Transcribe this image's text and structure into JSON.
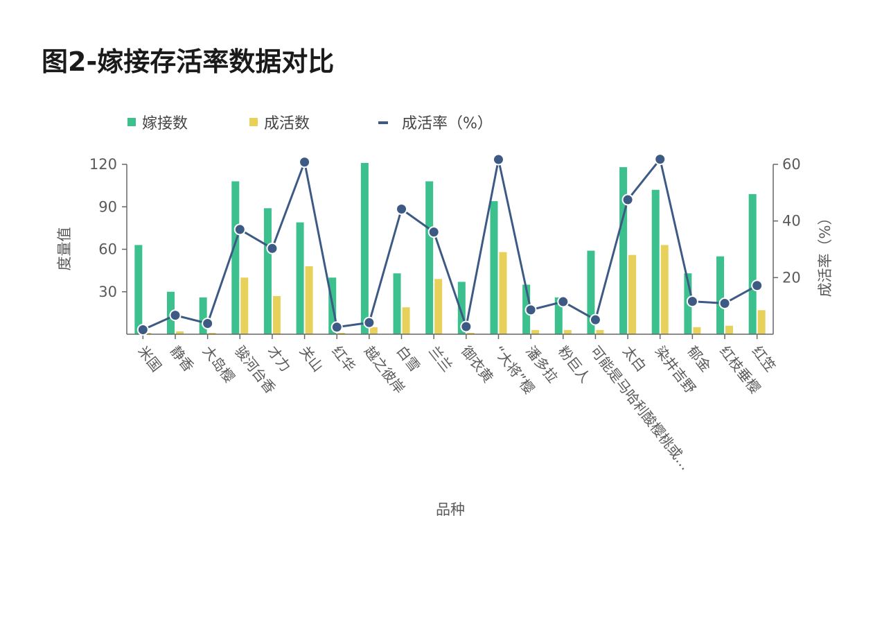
{
  "title": "图2-嫁接存活率数据对比",
  "colors": {
    "bar1": "#3cc08e",
    "bar2": "#e8d15a",
    "line": "#3d5a85",
    "axis": "#666666"
  },
  "chart_data": {
    "type": "bar",
    "categories": [
      "米国",
      "静香",
      "大岛樱",
      "骏河台香",
      "才力",
      "关山",
      "红华",
      "越之彼岸",
      "白雪",
      "兰兰",
      "御衣黄",
      "“大将”樱",
      "潘多拉",
      "粉巨人",
      "可能是马哈利酸樱桃或…",
      "太白",
      "染井吉野",
      "郁金",
      "红枝垂樱",
      "红笠"
    ],
    "series": [
      {
        "name": "嫁接数",
        "type": "bar",
        "axis": "left",
        "color": "#3cc08e",
        "values": [
          63,
          30,
          26,
          108,
          89,
          79,
          40,
          121,
          43,
          108,
          37,
          94,
          35,
          26,
          59,
          118,
          102,
          43,
          55,
          99
        ]
      },
      {
        "name": "成活数",
        "type": "bar",
        "axis": "left",
        "color": "#e8d15a",
        "values": [
          1,
          2,
          1,
          40,
          27,
          48,
          1,
          5,
          19,
          39,
          1,
          58,
          3,
          3,
          3,
          56,
          63,
          5,
          6,
          17
        ]
      },
      {
        "name": "成活率（%）",
        "type": "line",
        "axis": "right",
        "color": "#3d5a85",
        "values": [
          1.6,
          6.7,
          3.8,
          37.0,
          30.3,
          60.8,
          2.5,
          4.1,
          44.2,
          36.1,
          2.7,
          61.7,
          8.6,
          11.5,
          5.1,
          47.5,
          61.8,
          11.6,
          10.9,
          17.2
        ]
      }
    ],
    "xlabel": "品种",
    "ylabel": "度量值",
    "y2label": "成活率（%）",
    "ylim": [
      0,
      120
    ],
    "yticks": [
      30,
      60,
      90,
      120
    ],
    "y2lim": [
      0,
      60
    ],
    "y2ticks": [
      20,
      40,
      60
    ],
    "legend": "top-left",
    "grid": false
  }
}
